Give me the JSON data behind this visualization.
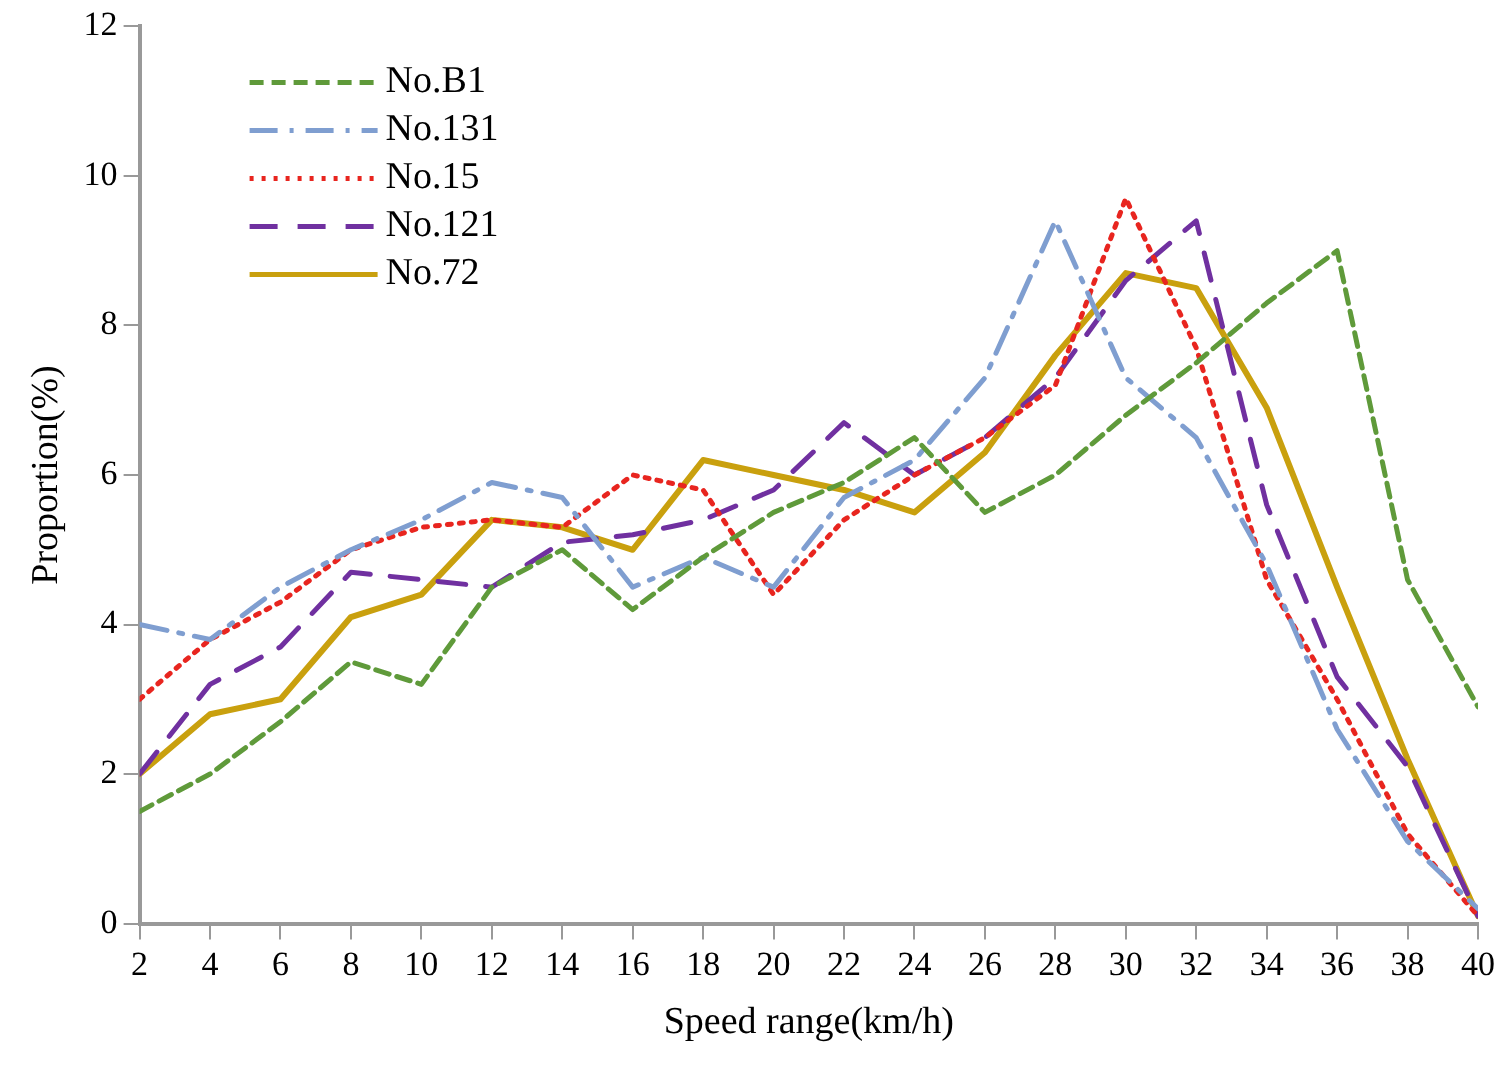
{
  "chart_data": {
    "type": "line",
    "xlabel": "Speed range(km/h)",
    "ylabel": "Proportion(%)",
    "x": [
      2,
      4,
      6,
      8,
      10,
      12,
      14,
      16,
      18,
      20,
      22,
      24,
      26,
      28,
      30,
      32,
      34,
      36,
      38,
      40
    ],
    "xlim": [
      2,
      40
    ],
    "xticks": [
      2,
      4,
      6,
      8,
      10,
      12,
      14,
      16,
      18,
      20,
      22,
      24,
      26,
      28,
      30,
      32,
      34,
      36,
      38,
      40
    ],
    "ylim": [
      0,
      12
    ],
    "yticks": [
      0,
      2,
      4,
      6,
      8,
      10,
      12
    ],
    "grid": false,
    "legend": "top left",
    "marker": "none",
    "series": [
      {
        "name": "No.B1",
        "color": "#5f9a3a",
        "line_style": "dashed",
        "values": [
          1.5,
          2.0,
          2.7,
          3.5,
          3.2,
          4.5,
          5.0,
          4.2,
          4.9,
          5.5,
          5.9,
          6.5,
          5.5,
          6.0,
          6.8,
          7.5,
          8.3,
          9.0,
          4.6,
          2.9
        ]
      },
      {
        "name": "No.131",
        "color": "#7f9ed0",
        "line_style": "dashdot",
        "values": [
          4.0,
          3.8,
          4.5,
          5.0,
          5.4,
          5.9,
          5.7,
          4.5,
          4.9,
          4.5,
          5.7,
          6.2,
          7.3,
          9.4,
          7.3,
          6.5,
          4.8,
          2.6,
          1.1,
          0.2
        ]
      },
      {
        "name": "No.15",
        "color": "#e8251f",
        "line_style": "dotted",
        "values": [
          3.0,
          3.8,
          4.3,
          5.0,
          5.3,
          5.4,
          5.3,
          6.0,
          5.8,
          4.4,
          5.4,
          6.0,
          6.5,
          7.2,
          9.7,
          7.7,
          4.6,
          3.0,
          1.2,
          0.1
        ]
      },
      {
        "name": "No.121",
        "color": "#7030a0",
        "line_style": "longdash",
        "values": [
          2.0,
          3.2,
          3.7,
          4.7,
          4.6,
          4.5,
          5.1,
          5.2,
          5.4,
          5.8,
          6.7,
          6.0,
          6.5,
          7.3,
          8.6,
          9.4,
          5.6,
          3.3,
          2.1,
          0.1
        ]
      },
      {
        "name": "No.72",
        "color": "#c9a00e",
        "line_style": "solid",
        "values": [
          2.0,
          2.8,
          3.0,
          4.1,
          4.4,
          5.4,
          5.3,
          5.0,
          6.2,
          6.0,
          5.8,
          5.5,
          6.3,
          7.6,
          8.7,
          8.5,
          6.9,
          4.5,
          2.2,
          0.1
        ]
      }
    ]
  }
}
